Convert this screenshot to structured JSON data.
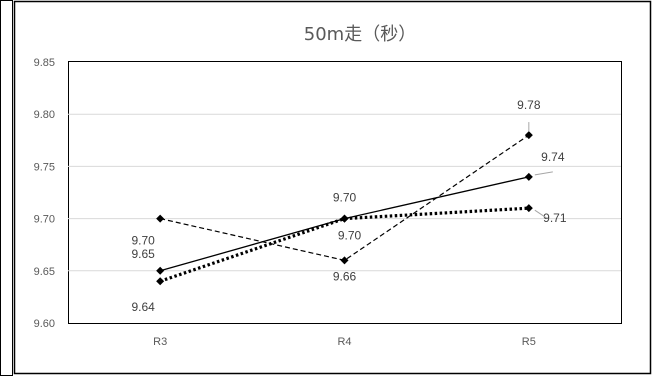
{
  "chart_data": {
    "type": "line",
    "title": "50m走（秒）",
    "categories": [
      "R3",
      "R4",
      "R5"
    ],
    "ylim": [
      9.6,
      9.85
    ],
    "yticks": [
      "9.60",
      "9.65",
      "9.70",
      "9.75",
      "9.80",
      "9.85"
    ],
    "grid": true,
    "legend": "none",
    "series": [
      {
        "style": "solid",
        "values": [
          9.65,
          9.7,
          9.74
        ],
        "labels": [
          "9.65",
          "9.70",
          "9.74"
        ]
      },
      {
        "style": "dashed",
        "values": [
          9.7,
          9.66,
          9.78
        ],
        "labels": [
          "9.70",
          "9.66",
          "9.78"
        ]
      },
      {
        "style": "dotted",
        "values": [
          9.64,
          9.7,
          9.71
        ],
        "labels": [
          "9.64",
          "9.70",
          "9.71"
        ]
      }
    ],
    "colors": {
      "line": "#000000",
      "grid": "#d9d9d9",
      "axis_text": "#595959",
      "label_text": "#404040",
      "leader": "#a6a6a6"
    }
  }
}
